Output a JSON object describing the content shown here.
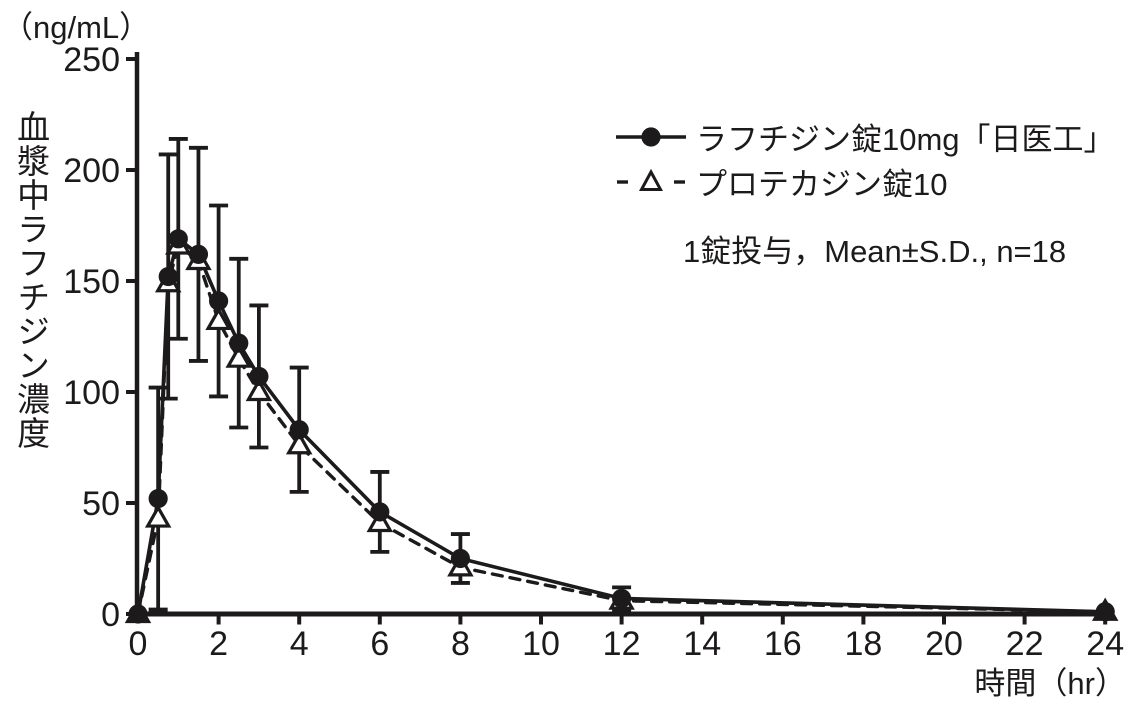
{
  "chart_data": {
    "type": "line",
    "title": "",
    "y_unit": "（ng/mL）",
    "ylabel": "血漿中ラフチジン濃度",
    "xlabel": "時間（hr）",
    "annotation": "1錠投与，Mean±S.D., n=18",
    "xlim": [
      0,
      24
    ],
    "ylim": [
      0,
      250
    ],
    "x_ticks": [
      0,
      2,
      4,
      6,
      8,
      10,
      12,
      14,
      16,
      18,
      20,
      22,
      24
    ],
    "y_ticks": [
      0,
      50,
      100,
      150,
      200,
      250
    ],
    "grid": false,
    "legend_position": "upper-right",
    "color": "#1c1a1a",
    "x": [
      0,
      0.5,
      0.75,
      1,
      1.5,
      2,
      2.5,
      3,
      4,
      6,
      8,
      12,
      24
    ],
    "series": [
      {
        "name": "ラフチジン錠10mg「日医工」",
        "line": "solid",
        "marker": "filled-circle",
        "values": [
          0,
          52,
          152,
          169,
          162,
          141,
          122,
          107,
          83,
          46,
          25,
          7,
          1
        ],
        "sd": [
          0,
          50,
          55,
          45,
          48,
          43,
          38,
          32,
          28,
          18,
          11,
          5,
          0
        ]
      },
      {
        "name": "プロテカジン錠10",
        "line": "dashed",
        "marker": "open-triangle",
        "values": [
          0,
          43,
          149,
          166,
          159,
          132,
          115,
          100,
          76,
          41,
          21,
          6,
          1
        ],
        "sd": null
      }
    ]
  }
}
